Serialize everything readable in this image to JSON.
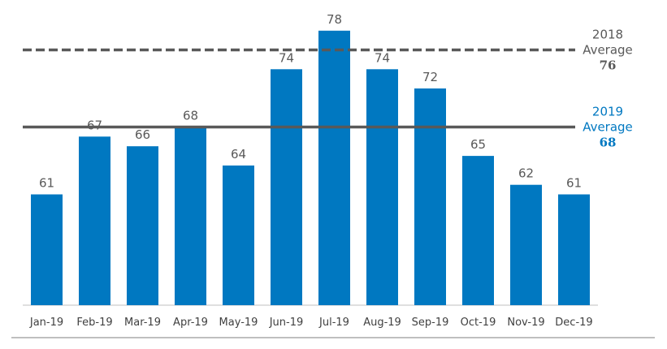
{
  "chart_data": {
    "type": "bar",
    "categories": [
      "Jan-19",
      "Feb-19",
      "Mar-19",
      "Apr-19",
      "May-19",
      "Jun-19",
      "Jul-19",
      "Aug-19",
      "Sep-19",
      "Oct-19",
      "Nov-19",
      "Dec-19"
    ],
    "values": [
      61,
      67,
      66,
      68,
      64,
      74,
      78,
      74,
      72,
      65,
      62,
      61
    ],
    "title": "",
    "xlabel": "",
    "ylabel": "",
    "ylim": [
      49.5,
      79.5
    ],
    "grid": false,
    "bar_color": "#0078C1",
    "reference_lines": [
      {
        "year": "2018",
        "word": "Average",
        "value": 76,
        "value_label": "76",
        "style": "dashed",
        "line_color": "#595959",
        "label_color": "#595959",
        "value_color": "#595959"
      },
      {
        "year": "2019",
        "word": "Average",
        "value": 68,
        "value_label": "68",
        "style": "solid",
        "line_color": "#595959",
        "label_color": "#0078C1",
        "value_color": "#0078C1"
      }
    ]
  }
}
